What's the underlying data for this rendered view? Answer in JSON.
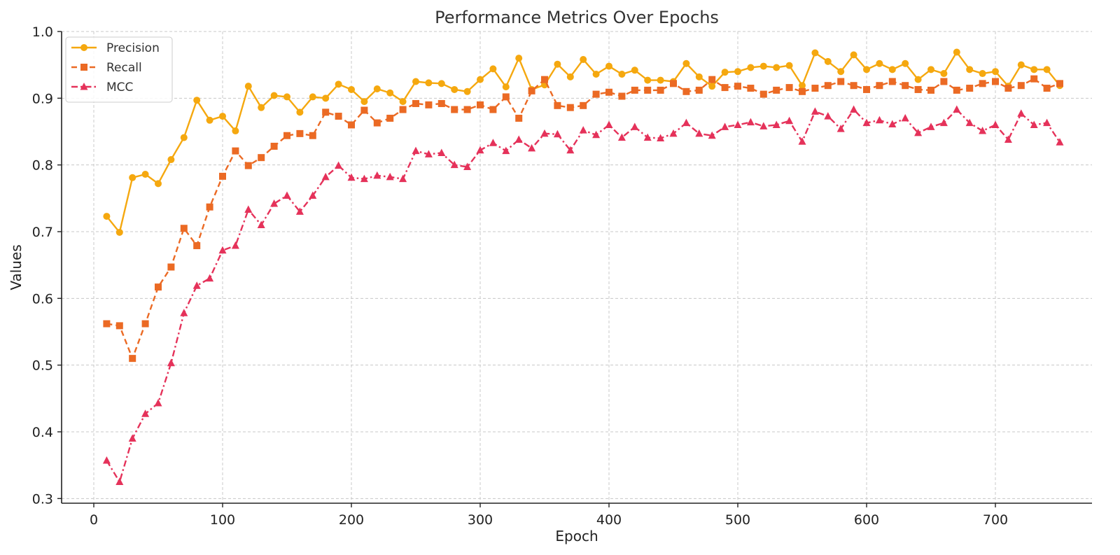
{
  "chart_data": {
    "type": "line",
    "title": "Performance Metrics Over Epochs",
    "xlabel": "Epoch",
    "ylabel": "Values",
    "xlim": [
      -25,
      775
    ],
    "ylim": [
      0.293,
      1.0
    ],
    "xticks": [
      0,
      100,
      200,
      300,
      400,
      500,
      600,
      700
    ],
    "yticks": [
      0.3,
      0.4,
      0.5,
      0.6,
      0.7,
      0.8,
      0.9,
      1.0
    ],
    "grid": true,
    "legend_position": "top-left",
    "x": [
      10,
      20,
      30,
      40,
      50,
      60,
      70,
      80,
      90,
      100,
      110,
      120,
      130,
      140,
      150,
      160,
      170,
      180,
      190,
      200,
      210,
      220,
      230,
      240,
      250,
      260,
      270,
      280,
      290,
      300,
      310,
      320,
      330,
      340,
      350,
      360,
      370,
      380,
      390,
      400,
      410,
      420,
      430,
      440,
      450,
      460,
      470,
      480,
      490,
      500,
      510,
      520,
      530,
      540,
      550,
      560,
      570,
      580,
      590,
      600,
      610,
      620,
      630,
      640,
      650,
      660,
      670,
      680,
      690,
      700,
      710,
      720,
      730,
      740,
      750
    ],
    "series": [
      {
        "name": "Precision",
        "color": "#f5a80f",
        "line_style": "solid",
        "marker": "circle",
        "values": [
          0.723,
          0.699,
          0.781,
          0.786,
          0.772,
          0.808,
          0.841,
          0.897,
          0.867,
          0.873,
          0.851,
          0.918,
          0.886,
          0.904,
          0.902,
          0.879,
          0.902,
          0.9,
          0.921,
          0.913,
          0.895,
          0.914,
          0.908,
          0.895,
          0.925,
          0.923,
          0.922,
          0.913,
          0.91,
          0.928,
          0.944,
          0.917,
          0.96,
          0.913,
          0.92,
          0.951,
          0.932,
          0.958,
          0.936,
          0.948,
          0.936,
          0.942,
          0.927,
          0.927,
          0.925,
          0.952,
          0.932,
          0.918,
          0.939,
          0.94,
          0.946,
          0.948,
          0.946,
          0.949,
          0.919,
          0.968,
          0.955,
          0.94,
          0.965,
          0.943,
          0.952,
          0.943,
          0.952,
          0.928,
          0.943,
          0.937,
          0.969,
          0.943,
          0.937,
          0.94,
          0.918,
          0.95,
          0.943,
          0.943,
          0.919
        ]
      },
      {
        "name": "Recall",
        "color": "#eb6a24",
        "line_style": "dashed",
        "marker": "square",
        "values": [
          0.562,
          0.559,
          0.51,
          0.562,
          0.617,
          0.647,
          0.705,
          0.679,
          0.737,
          0.783,
          0.821,
          0.799,
          0.811,
          0.828,
          0.844,
          0.847,
          0.844,
          0.879,
          0.873,
          0.86,
          0.882,
          0.863,
          0.87,
          0.883,
          0.892,
          0.89,
          0.892,
          0.883,
          0.883,
          0.89,
          0.883,
          0.902,
          0.87,
          0.911,
          0.928,
          0.889,
          0.886,
          0.889,
          0.906,
          0.909,
          0.903,
          0.912,
          0.912,
          0.912,
          0.922,
          0.91,
          0.912,
          0.928,
          0.916,
          0.918,
          0.915,
          0.906,
          0.912,
          0.916,
          0.91,
          0.915,
          0.919,
          0.925,
          0.919,
          0.913,
          0.919,
          0.925,
          0.919,
          0.913,
          0.912,
          0.925,
          0.912,
          0.915,
          0.922,
          0.925,
          0.915,
          0.919,
          0.929,
          0.915,
          0.922
        ]
      },
      {
        "name": "MCC",
        "color": "#e5325a",
        "line_style": "dashdot",
        "marker": "triangle",
        "values": [
          0.357,
          0.325,
          0.39,
          0.427,
          0.443,
          0.503,
          0.578,
          0.619,
          0.63,
          0.672,
          0.679,
          0.733,
          0.71,
          0.742,
          0.754,
          0.73,
          0.754,
          0.782,
          0.799,
          0.781,
          0.779,
          0.784,
          0.782,
          0.779,
          0.821,
          0.816,
          0.818,
          0.8,
          0.797,
          0.822,
          0.833,
          0.821,
          0.838,
          0.825,
          0.847,
          0.846,
          0.822,
          0.852,
          0.845,
          0.86,
          0.841,
          0.857,
          0.841,
          0.84,
          0.847,
          0.863,
          0.847,
          0.844,
          0.857,
          0.86,
          0.864,
          0.858,
          0.86,
          0.866,
          0.835,
          0.88,
          0.873,
          0.854,
          0.883,
          0.863,
          0.867,
          0.861,
          0.87,
          0.848,
          0.857,
          0.863,
          0.883,
          0.863,
          0.851,
          0.86,
          0.838,
          0.877,
          0.86,
          0.863,
          0.834
        ]
      }
    ]
  }
}
